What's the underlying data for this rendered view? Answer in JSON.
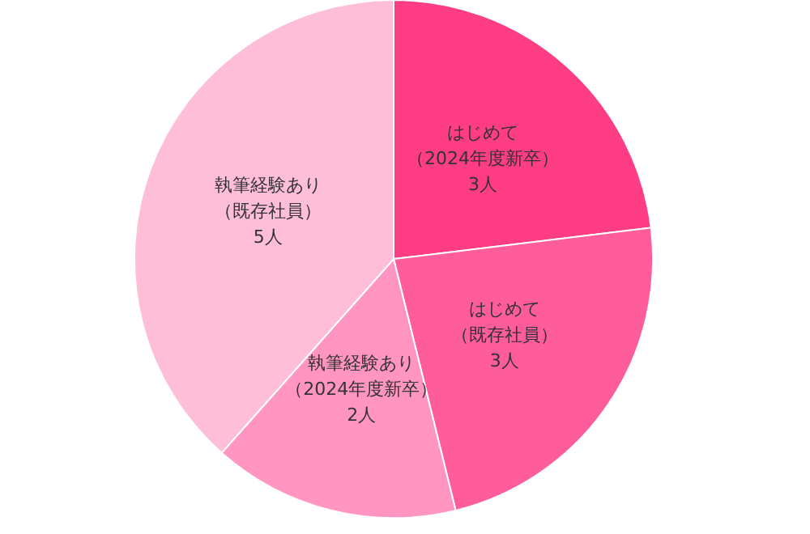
{
  "chart_data": {
    "type": "pie",
    "categories": [
      "はじめて（2024年度新卒）",
      "はじめて（既存社員）",
      "執筆経験あり（2024年度新卒）",
      "執筆経験あり（既存社員）"
    ],
    "values": [
      3,
      3,
      2,
      5
    ],
    "value_labels": [
      "3人",
      "3人",
      "2人",
      "5人"
    ],
    "colors": [
      "#ff3d84",
      "#ff5c9c",
      "#ff95c0",
      "#ffbed8"
    ],
    "legend": false
  }
}
